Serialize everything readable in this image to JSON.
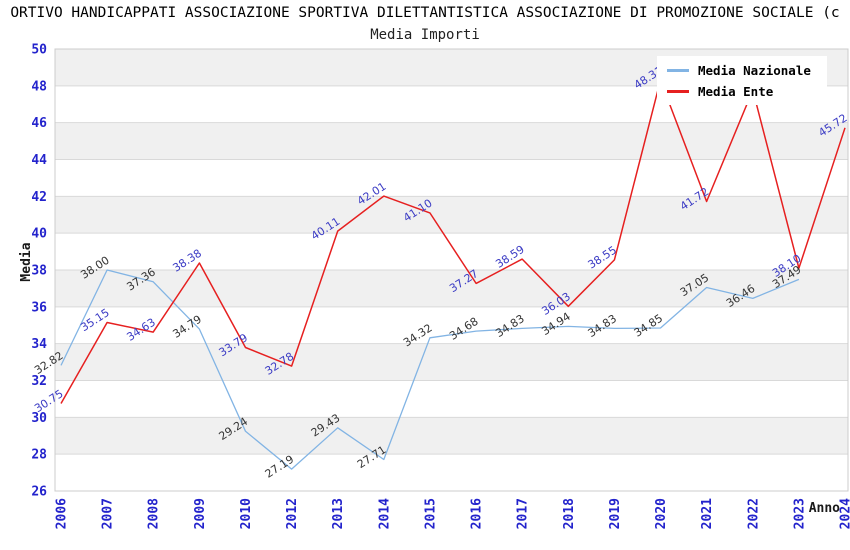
{
  "chart_data": {
    "type": "line",
    "title": "ORTIVO HANDICAPPATI ASSOCIAZIONE SPORTIVA DILETTANTISTICA ASSOCIAZIONE DI PROMOZIONE SOCIALE (c",
    "subtitle": "Media Importi",
    "xlabel": "Anno",
    "ylabel": "Media",
    "ylim": [
      26,
      50
    ],
    "ytick_step": 2,
    "grid": "horizontal gridlines with alternating gray bands",
    "legend_position": "top-right",
    "categories": [
      "2006",
      "2007",
      "2008",
      "2009",
      "2010",
      "2012",
      "2013",
      "2014",
      "2015",
      "2016",
      "2017",
      "2018",
      "2019",
      "2020",
      "2021",
      "2022",
      "2023",
      "2024"
    ],
    "series": [
      {
        "name": "Media Nazionale",
        "color": "#82b4e4",
        "label_color": "#333333",
        "values": [
          32.82,
          38.0,
          37.36,
          34.79,
          29.24,
          27.19,
          29.43,
          27.71,
          34.32,
          34.68,
          34.83,
          34.94,
          34.83,
          34.85,
          37.05,
          36.46,
          37.49,
          null
        ]
      },
      {
        "name": "Media Ente",
        "color": "#e62020",
        "label_color": "#3b3bc4",
        "values": [
          30.75,
          35.15,
          34.63,
          38.38,
          33.79,
          32.78,
          40.11,
          42.01,
          41.1,
          37.27,
          38.59,
          36.03,
          38.55,
          48.31,
          41.72,
          47.77,
          38.1,
          45.72
        ]
      }
    ]
  },
  "colors": {
    "tick_label": "#2323cc",
    "grid_line": "#d9d9d9",
    "band_gray": "#f0f0f0",
    "plot_border": "#cccccc"
  }
}
